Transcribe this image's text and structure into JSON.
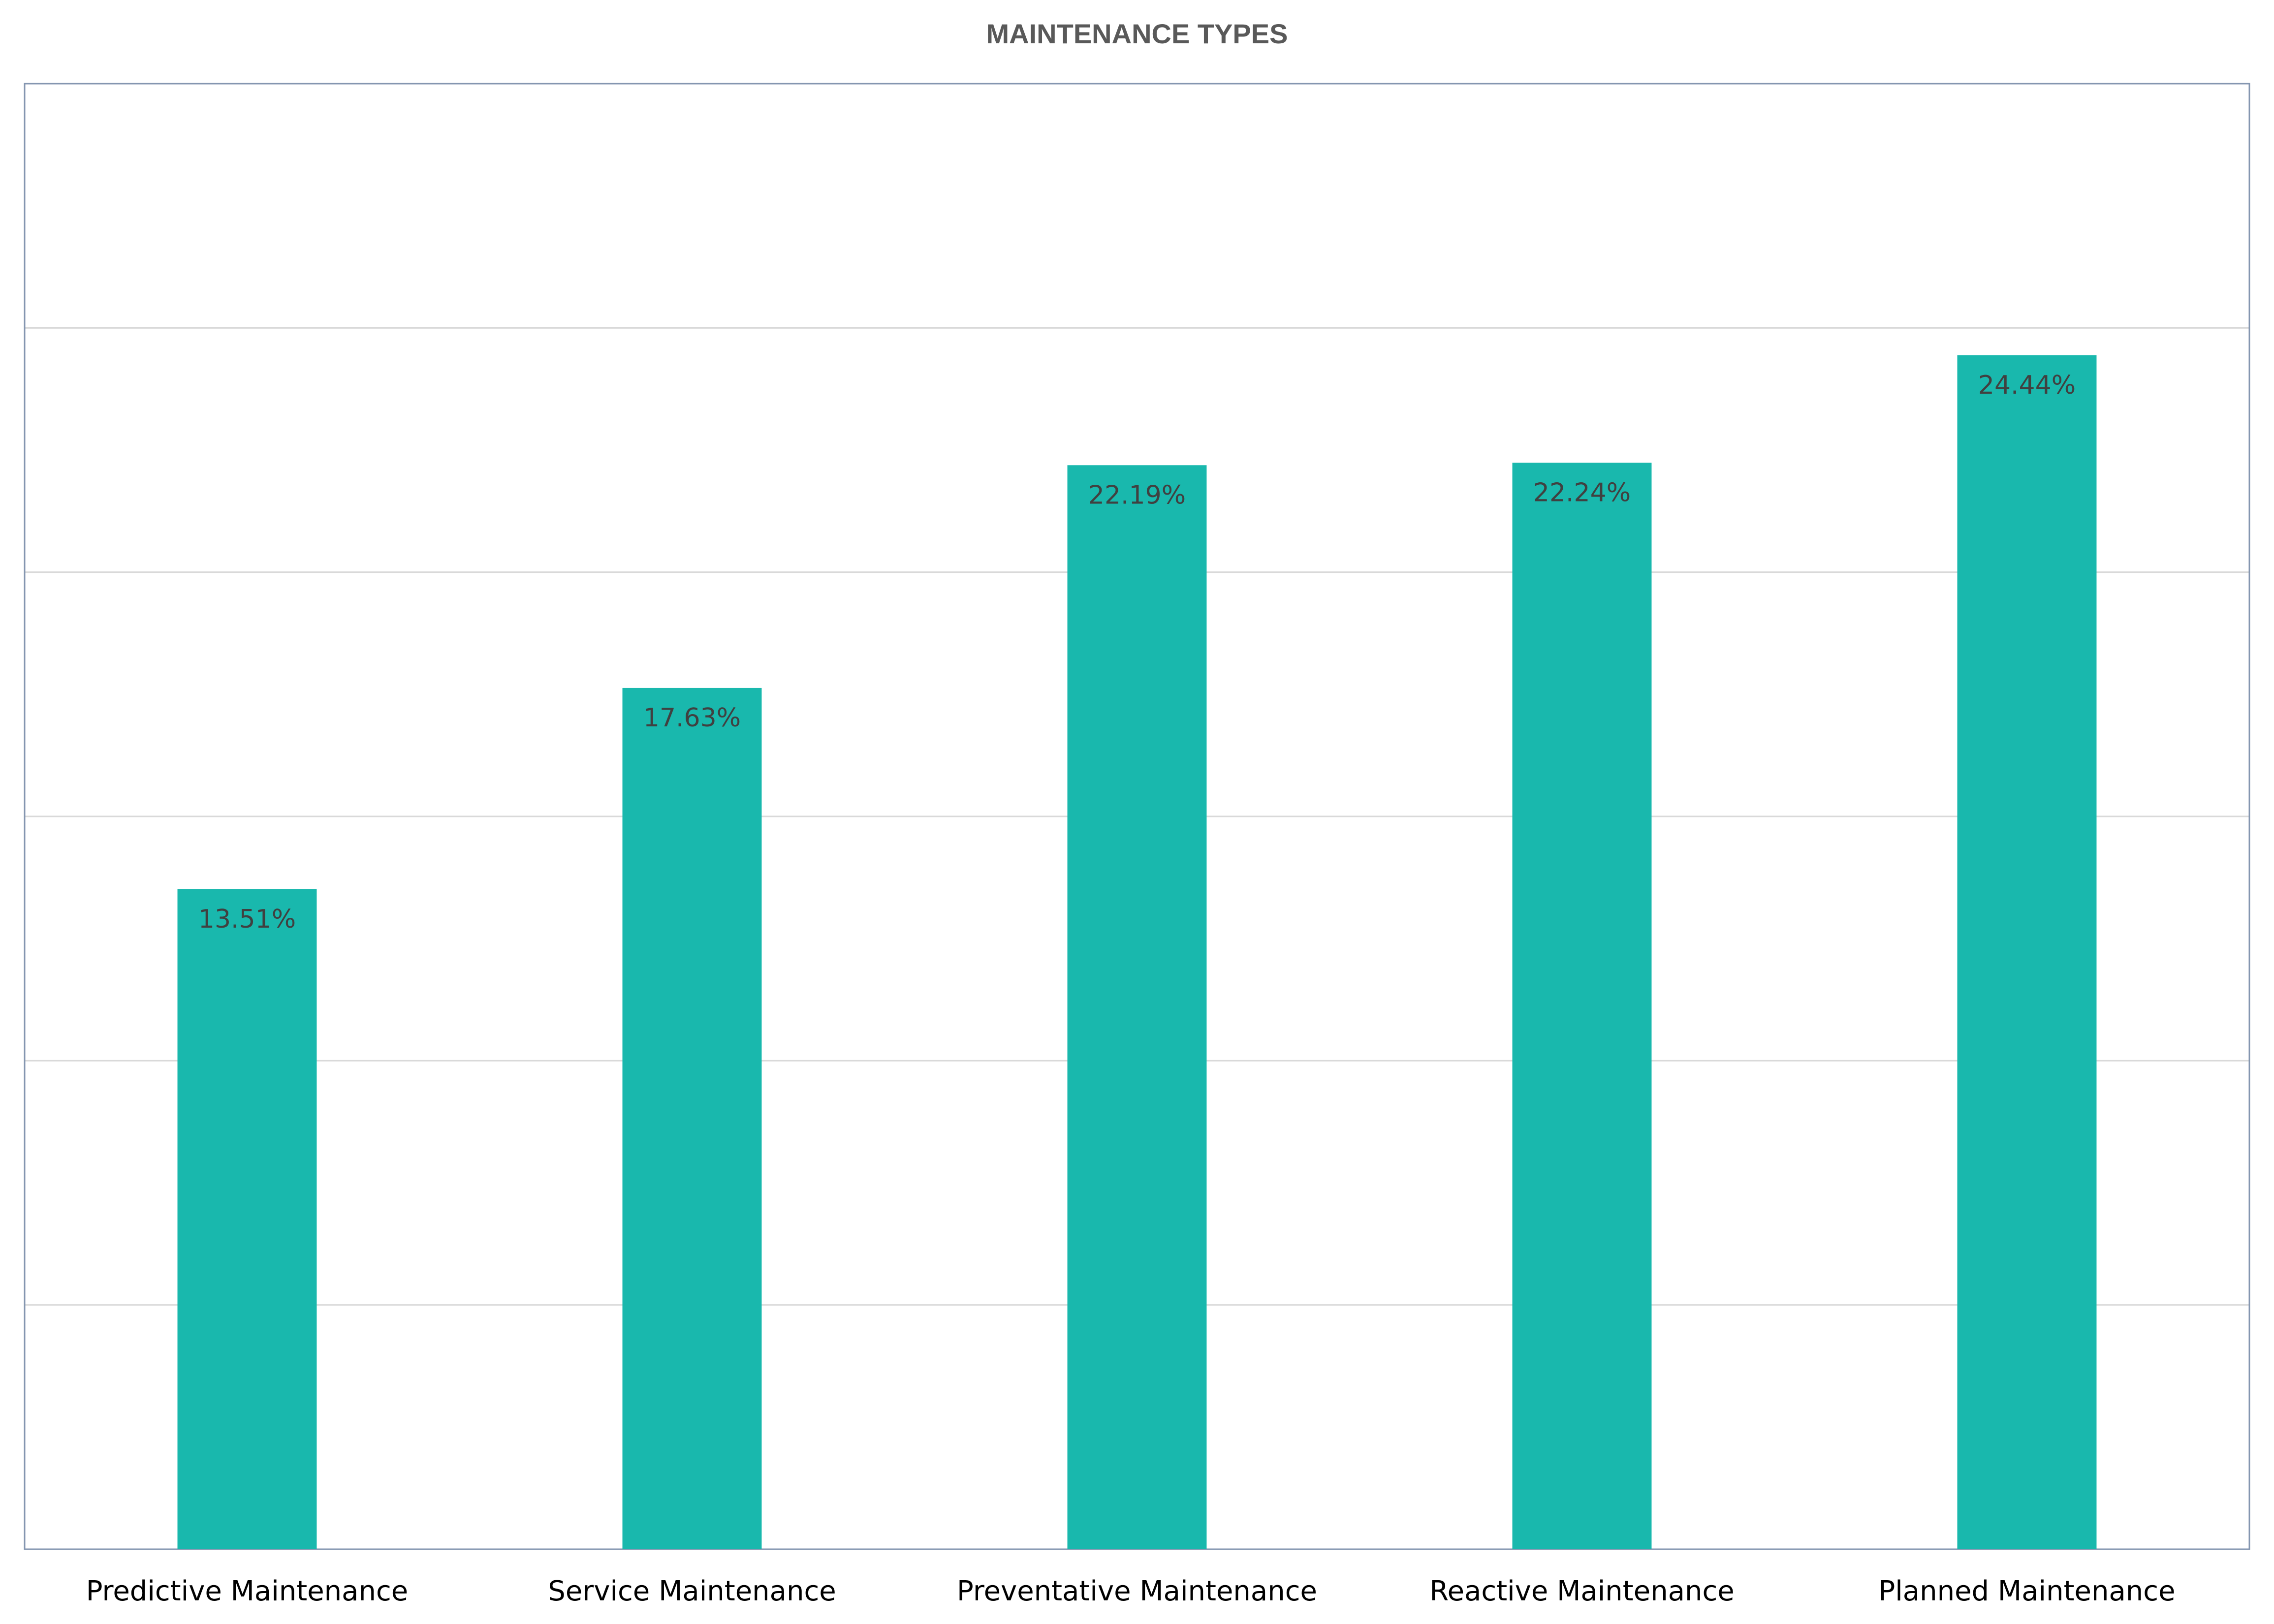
{
  "chart_data": {
    "type": "bar",
    "title": "MAINTENANCE TYPES",
    "xlabel": "",
    "ylabel": "",
    "categories": [
      "Predictive Maintenance",
      "Service Maintenance",
      "Preventative Maintenance",
      "Reactive Maintenance",
      "Planned Maintenance"
    ],
    "values": [
      13.51,
      17.63,
      22.19,
      22.24,
      24.44
    ],
    "data_labels": [
      "13.51%",
      "17.63%",
      "22.19%",
      "22.24%",
      "24.44%"
    ],
    "ylim": [
      0,
      30
    ],
    "grid": true,
    "legend": "none",
    "bar_color": "#19b8ad"
  }
}
